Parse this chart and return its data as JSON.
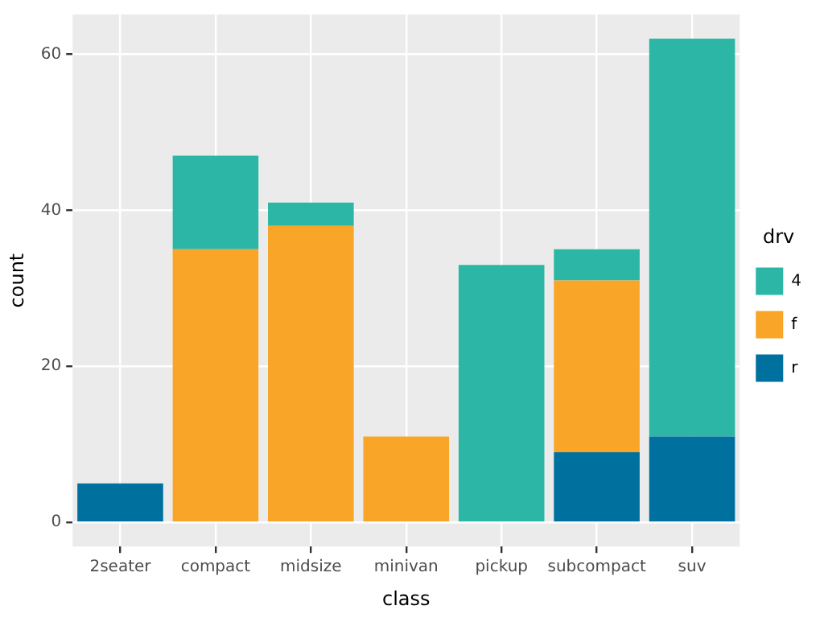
{
  "chart_data": {
    "type": "bar",
    "xlabel": "class",
    "ylabel": "count",
    "legend_title": "drv",
    "categories": [
      "2seater",
      "compact",
      "midsize",
      "minivan",
      "pickup",
      "subcompact",
      "suv"
    ],
    "stacked": true,
    "series": [
      {
        "name": "r",
        "color": "#00719e",
        "values": [
          5,
          null,
          null,
          null,
          null,
          9,
          11
        ]
      },
      {
        "name": "f",
        "color": "#f9a527",
        "values": [
          null,
          35,
          38,
          11,
          null,
          22,
          null
        ]
      },
      {
        "name": "4",
        "color": "#2bb6a5",
        "values": [
          null,
          12,
          3,
          null,
          33,
          4,
          51
        ]
      }
    ],
    "ylim": [
      -3.1,
      65.1
    ],
    "yticks": [
      0,
      20,
      40,
      60
    ],
    "grid": true,
    "legend": "right"
  }
}
